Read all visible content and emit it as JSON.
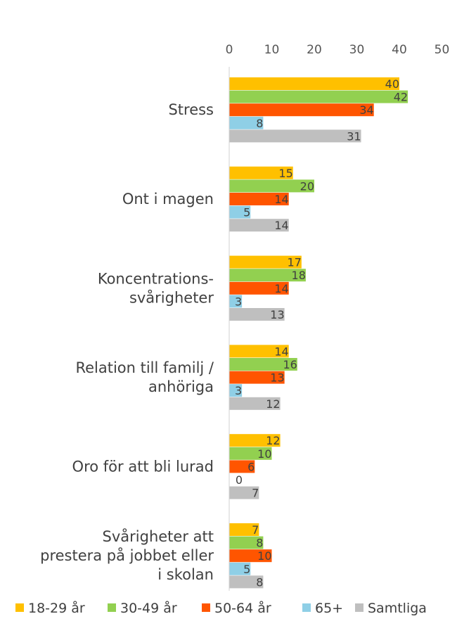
{
  "chart_data": {
    "type": "bar",
    "orientation": "horizontal",
    "categories": [
      [
        "Stress"
      ],
      [
        "Ont i magen"
      ],
      [
        "Koncentrations-",
        "svårigheter"
      ],
      [
        "Relation till familj /",
        "anhöriga"
      ],
      [
        "Oro för att bli lurad"
      ],
      [
        "Svårigheter att",
        "prestera på jobbet eller",
        "i skolan"
      ]
    ],
    "series": [
      {
        "name": "18-29 år",
        "color": "#FFC000",
        "values": [
          40,
          15,
          17,
          14,
          12,
          7
        ]
      },
      {
        "name": "30-49 år",
        "color": "#92D050",
        "values": [
          42,
          20,
          18,
          16,
          10,
          8
        ]
      },
      {
        "name": "50-64 år",
        "color": "#FF5500",
        "values": [
          34,
          14,
          14,
          13,
          6,
          10
        ]
      },
      {
        "name": "65+",
        "color": "#8FCFE6",
        "values": [
          8,
          5,
          3,
          3,
          0,
          5
        ]
      },
      {
        "name": "Samtliga",
        "color": "#BFBFBF",
        "values": [
          31,
          14,
          13,
          12,
          7,
          8
        ]
      }
    ],
    "xlim": [
      0,
      50
    ],
    "ticks": [
      0,
      10,
      20,
      30,
      40,
      50
    ],
    "axis_position": "top",
    "grid": false,
    "legend_position": "bottom",
    "data_labels": true
  }
}
